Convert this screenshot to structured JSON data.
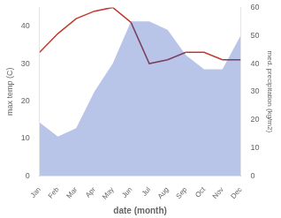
{
  "chart_data": {
    "type": "line",
    "xlabel": "date (month)",
    "ylabel": "max temp (C)",
    "y2label": "med. precipitation (kg/m2)",
    "categories": [
      "Jan",
      "Feb",
      "Mar",
      "Apr",
      "May",
      "Jun",
      "Jul",
      "Aug",
      "Sep",
      "Oct",
      "Nov",
      "Dec"
    ],
    "series": [
      {
        "type": "area",
        "axis": "y2",
        "color": "#b8c4e8",
        "values": [
          19,
          14,
          17,
          30,
          40,
          55,
          55,
          52,
          43,
          38,
          38,
          50
        ]
      },
      {
        "type": "line",
        "color": "#c0392b",
        "colors": [
          "#c0392b",
          "#c0392b",
          "#c0392b",
          "#c0392b",
          "#c0392b",
          "#7b3f5e",
          "#7b3f5e",
          "#7b3f5e",
          "#c0392b",
          "#c0392b",
          "#7b3f5e"
        ],
        "values": [
          33,
          38,
          42,
          44,
          45,
          41,
          30,
          31,
          33,
          33,
          31,
          31
        ]
      }
    ],
    "ylim": [
      0,
      45
    ],
    "yticks": [
      0,
      10,
      20,
      30,
      40
    ],
    "y2lim": [
      0,
      60
    ],
    "y2ticks": [
      0,
      10,
      20,
      30,
      40,
      50,
      60
    ],
    "grid": false
  }
}
